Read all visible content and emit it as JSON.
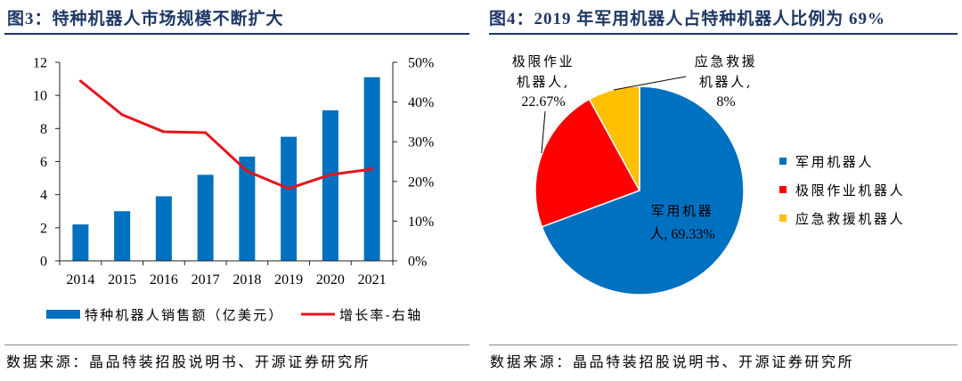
{
  "chart_data": [
    {
      "type": "bar",
      "title": "图3：特种机器人市场规模不断扩大",
      "source": "数据来源：晶品特装招股说明书、开源证券研究所",
      "categories": [
        "2014",
        "2015",
        "2016",
        "2017",
        "2018",
        "2019",
        "2020",
        "2021"
      ],
      "series": [
        {
          "name": "特种机器人销售额（亿美元）",
          "type": "bar",
          "axis": "left",
          "color": "#0070C0",
          "values": [
            2.2,
            3.0,
            3.9,
            5.2,
            6.3,
            7.5,
            9.1,
            11.1
          ]
        },
        {
          "name": "增长率-右轴",
          "type": "line",
          "axis": "right",
          "color": "#E8141C",
          "values": [
            45.3,
            36.8,
            32.5,
            32.3,
            22.6,
            18.2,
            21.7,
            23.1
          ]
        }
      ],
      "y_left": {
        "range": [
          0,
          12
        ],
        "ticks": [
          0,
          2,
          4,
          6,
          8,
          10,
          12
        ]
      },
      "y_right": {
        "range": [
          0,
          50
        ],
        "ticks": [
          0,
          10,
          20,
          30,
          40,
          50
        ],
        "tick_labels": [
          "0%",
          "10%",
          "20%",
          "30%",
          "40%",
          "50%"
        ]
      },
      "grid": false,
      "legend": "bottom"
    },
    {
      "type": "pie",
      "title": "图4：2019 年军用机器人占特种机器人比例为 69%",
      "source": "数据来源：晶品特装招股说明书、开源证券研究所",
      "slices": [
        {
          "name": "军用机器人",
          "value": 69.33,
          "label_lines": [
            "军用机器",
            "人, 69.33%"
          ],
          "color": "#0070C0"
        },
        {
          "name": "极限作业机器人",
          "value": 22.67,
          "label_lines": [
            "极限作业",
            "机器人,",
            "22.67%"
          ],
          "color": "#FF0000"
        },
        {
          "name": "应急救援机器人",
          "value": 8,
          "label_lines": [
            "应急救援",
            "机器人,",
            "8%"
          ],
          "color": "#FFC000"
        }
      ],
      "legend": "right"
    }
  ]
}
